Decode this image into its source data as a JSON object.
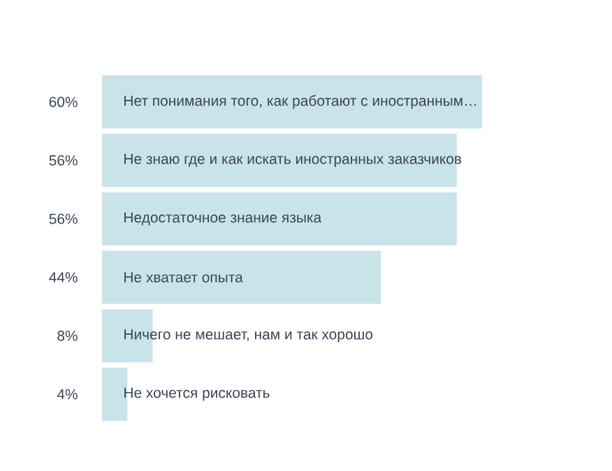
{
  "chart_data": {
    "type": "bar",
    "orientation": "horizontal",
    "categories": [
      "Нет понимания того, как работают с иностранным…",
      "Не знаю где и как искать иностранных заказчиков",
      "Недостаточное знание языка",
      "Не хватает опыта",
      "Ничего не мешает, нам и так хорошо",
      "Не хочется рисковать"
    ],
    "values": [
      60,
      56,
      56,
      44,
      8,
      4
    ],
    "value_labels": [
      "60%",
      "56%",
      "56%",
      "44%",
      "8%",
      "4%"
    ],
    "color": "#c9e4e9",
    "xlim": [
      0,
      60
    ]
  }
}
